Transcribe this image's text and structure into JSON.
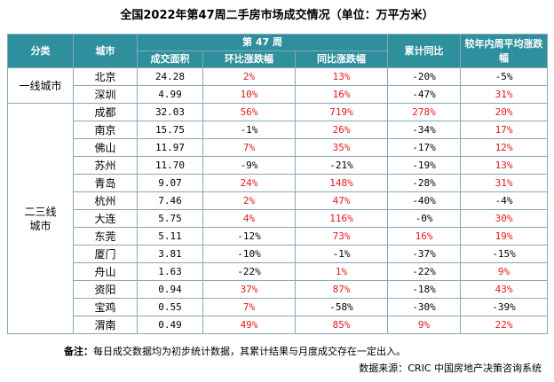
{
  "title": "全国2022年第47周二手房市场成交情况（单位：万平方米）",
  "header": {
    "category": "分类",
    "city": "城市",
    "week": "第 47 周",
    "area": "成交面积",
    "mom": "环比涨跌幅",
    "yoy": "同比涨跌幅",
    "cum_yoy": "累计同比",
    "vs_avg": "较年内周平均涨跌幅"
  },
  "groups": [
    {
      "name": "一线城市",
      "rows": [
        {
          "city": "北京",
          "area": "24.28",
          "mom": "2%",
          "yoy": "13%",
          "cum": "-20%",
          "avg": "-5%"
        },
        {
          "city": "深圳",
          "area": "4.99",
          "mom": "10%",
          "yoy": "16%",
          "cum": "-47%",
          "avg": "31%"
        }
      ]
    },
    {
      "name": "二三线城市",
      "rows": [
        {
          "city": "成都",
          "area": "32.03",
          "mom": "56%",
          "yoy": "719%",
          "cum": "278%",
          "avg": "20%"
        },
        {
          "city": "南京",
          "area": "15.75",
          "mom": "-1%",
          "yoy": "26%",
          "cum": "-34%",
          "avg": "17%"
        },
        {
          "city": "佛山",
          "area": "11.97",
          "mom": "7%",
          "yoy": "35%",
          "cum": "-17%",
          "avg": "12%"
        },
        {
          "city": "苏州",
          "area": "11.70",
          "mom": "-9%",
          "yoy": "-21%",
          "cum": "-19%",
          "avg": "13%"
        },
        {
          "city": "青岛",
          "area": "9.07",
          "mom": "24%",
          "yoy": "148%",
          "cum": "-28%",
          "avg": "31%"
        },
        {
          "city": "杭州",
          "area": "7.46",
          "mom": "2%",
          "yoy": "47%",
          "cum": "-40%",
          "avg": "-4%"
        },
        {
          "city": "大连",
          "area": "5.75",
          "mom": "4%",
          "yoy": "116%",
          "cum": "-0%",
          "avg": "30%"
        },
        {
          "city": "东莞",
          "area": "5.11",
          "mom": "-12%",
          "yoy": "73%",
          "cum": "16%",
          "avg": "19%"
        },
        {
          "city": "厦门",
          "area": "3.81",
          "mom": "-10%",
          "yoy": "-1%",
          "cum": "-37%",
          "avg": "-15%"
        },
        {
          "city": "舟山",
          "area": "1.63",
          "mom": "-22%",
          "yoy": "1%",
          "cum": "-22%",
          "avg": "9%"
        },
        {
          "city": "资阳",
          "area": "0.94",
          "mom": "37%",
          "yoy": "87%",
          "cum": "-18%",
          "avg": "43%"
        },
        {
          "city": "宝鸡",
          "area": "0.55",
          "mom": "7%",
          "yoy": "-58%",
          "cum": "-30%",
          "avg": "-39%"
        },
        {
          "city": "渭南",
          "area": "0.49",
          "mom": "49%",
          "yoy": "85%",
          "cum": "9%",
          "avg": "22%"
        }
      ]
    }
  ],
  "note_label": "备注：",
  "note_text": "每日成交数据均为初步统计数据，其累计结果与月度成交存在一定出入。",
  "source": "数据来源：CRIC 中国房地产决策咨询系统",
  "colors": {
    "header_bg": "#2e8f9d",
    "positive": "#e41a1c",
    "negative": "#000000",
    "border": "#8aa6b8"
  }
}
